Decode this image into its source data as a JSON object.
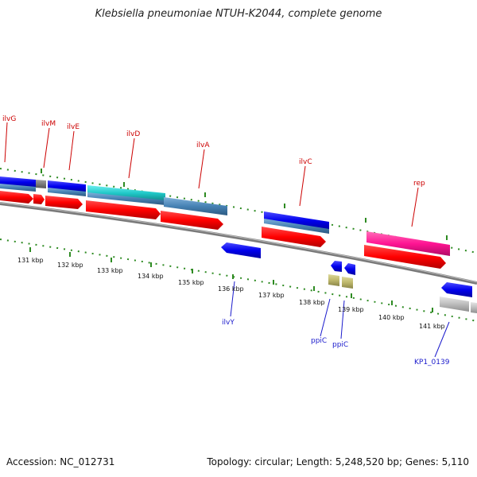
{
  "title": "Klebsiella pneumoniae NTUH-K2044, complete genome",
  "footer": {
    "accession": "Accession: NC_012731",
    "summary": "Topology: circular; Length: 5,248,520 bp; Genes: 5,110"
  },
  "kbp_labels": [
    "131 kbp",
    "132 kbp",
    "133 kbp",
    "134 kbp",
    "135 kbp",
    "136 kbp",
    "137 kbp",
    "138 kbp",
    "139 kbp",
    "140 kbp",
    "141 kbp"
  ],
  "forward_genes": [
    "ilvG",
    "ilvM",
    "ilvE",
    "ilvD",
    "ilvA",
    "ilvC",
    "rep"
  ],
  "reverse_genes": [
    "ilvY",
    "ppiC",
    "ppiC",
    "KP1_0139"
  ],
  "colors": {
    "cds": "#ff0000",
    "gene_blue": "#1010e0",
    "steel": "#4682b4",
    "cyan": "#20c8c8",
    "magenta": "#ff1493",
    "olive": "#bdb76b",
    "grey": "#b0b0b0",
    "backbone": "#808080",
    "ticks": "#2e8b22"
  }
}
